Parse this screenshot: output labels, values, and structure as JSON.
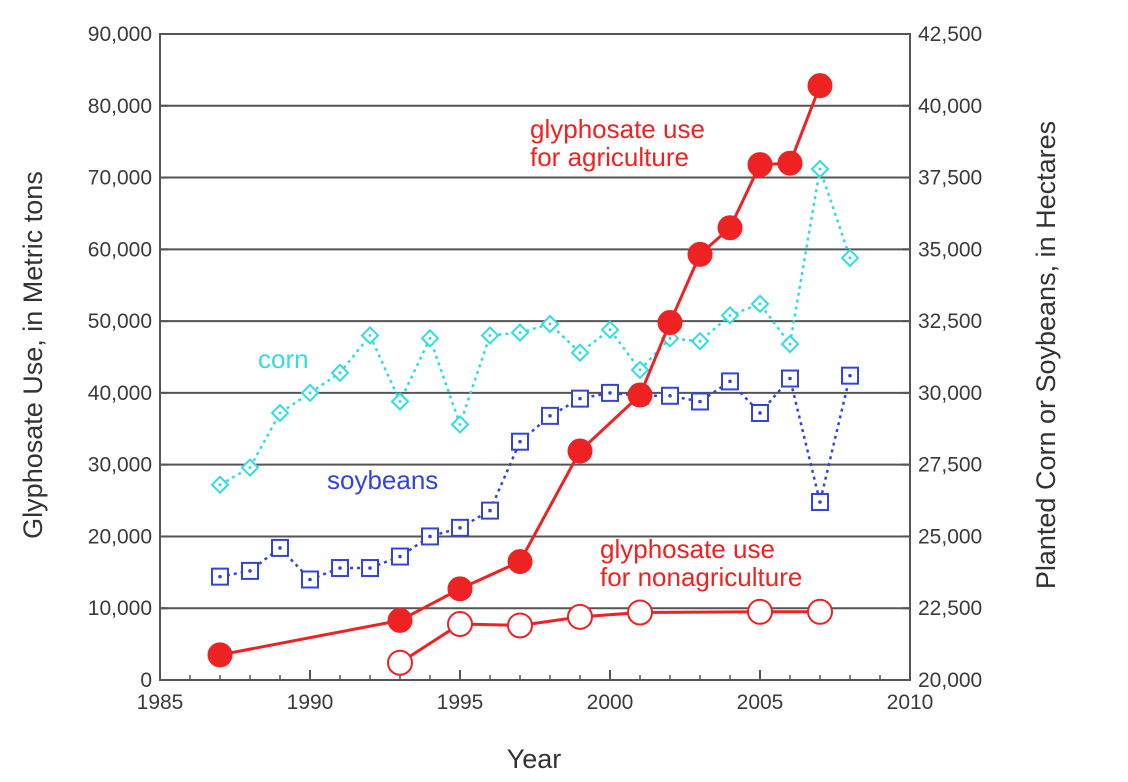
{
  "chart_data": {
    "type": "line",
    "title": "",
    "xlabel": "Year",
    "ylabel": "Glyphosate Use, in Metric tons",
    "y2label": "Planted Corn or Soybeans, in Hectares",
    "xlim": [
      1985,
      2010
    ],
    "ylim": [
      0,
      90000
    ],
    "y2lim": [
      20000,
      42500
    ],
    "grid": "horizontal",
    "x_ticks": [
      "1985",
      "1990",
      "1995",
      "2000",
      "2005",
      "2010"
    ],
    "y_ticks": [
      "0",
      "10,000",
      "20,000",
      "30,000",
      "40,000",
      "50,000",
      "60,000",
      "70,000",
      "80,000",
      "90,000"
    ],
    "y2_ticks": [
      "20,000",
      "22,500",
      "25,000",
      "27,500",
      "30,000",
      "32,500",
      "35,000",
      "37,500",
      "40,000",
      "42,500"
    ],
    "series": [
      {
        "name": "corn",
        "axis": "right",
        "color": "#33dddd",
        "marker": "diamond",
        "line": "dotted",
        "x": [
          1987,
          1988,
          1989,
          1990,
          1991,
          1992,
          1993,
          1994,
          1995,
          1996,
          1997,
          1998,
          1999,
          2000,
          2001,
          2002,
          2003,
          2004,
          2005,
          2006,
          2007,
          2008
        ],
        "values": [
          26800,
          27400,
          29300,
          30000,
          30700,
          32000,
          29700,
          31900,
          28900,
          32000,
          32100,
          32400,
          31400,
          32200,
          30800,
          31900,
          31800,
          32700,
          33100,
          31700,
          37800,
          34700
        ]
      },
      {
        "name": "soybeans",
        "axis": "right",
        "color": "#3344dd",
        "marker": "square",
        "line": "dotted",
        "x": [
          1987,
          1988,
          1989,
          1990,
          1991,
          1992,
          1993,
          1994,
          1995,
          1996,
          1997,
          1998,
          1999,
          2000,
          2001,
          2002,
          2003,
          2004,
          2005,
          2006,
          2007,
          2008
        ],
        "values": [
          23600,
          23800,
          24600,
          23500,
          23900,
          23900,
          24300,
          25000,
          25300,
          25900,
          28300,
          29200,
          29800,
          30000,
          29900,
          29900,
          29700,
          30400,
          29300,
          30500,
          26200,
          30600
        ]
      },
      {
        "name": "glyphosate use for agriculture",
        "axis": "left",
        "color": "#ee2222",
        "marker": "filled-circle",
        "line": "solid",
        "x": [
          1987,
          1993,
          1995,
          1997,
          1999,
          2001,
          2002,
          2003,
          2004,
          2005,
          2006,
          2007
        ],
        "values": [
          3500,
          8300,
          12700,
          16500,
          31900,
          39700,
          49800,
          59300,
          63000,
          71800,
          72000,
          82800
        ]
      },
      {
        "name": "glyphosate use for nonagriculture",
        "axis": "left",
        "color": "#ee2222",
        "marker": "open-circle",
        "line": "solid",
        "x": [
          1993,
          1995,
          1997,
          1999,
          2001,
          2005,
          2007
        ],
        "values": [
          2400,
          7800,
          7600,
          8800,
          9400,
          9500,
          9500
        ]
      }
    ],
    "annotations": [
      {
        "lines": [
          "corn"
        ],
        "color": "#33dddd"
      },
      {
        "lines": [
          "soybeans"
        ],
        "color": "#3344dd"
      },
      {
        "lines": [
          "glyphosate use",
          "for agriculture"
        ],
        "color": "#ee2222"
      },
      {
        "lines": [
          "glyphosate use",
          "for nonagriculture"
        ],
        "color": "#ee2222"
      }
    ]
  }
}
